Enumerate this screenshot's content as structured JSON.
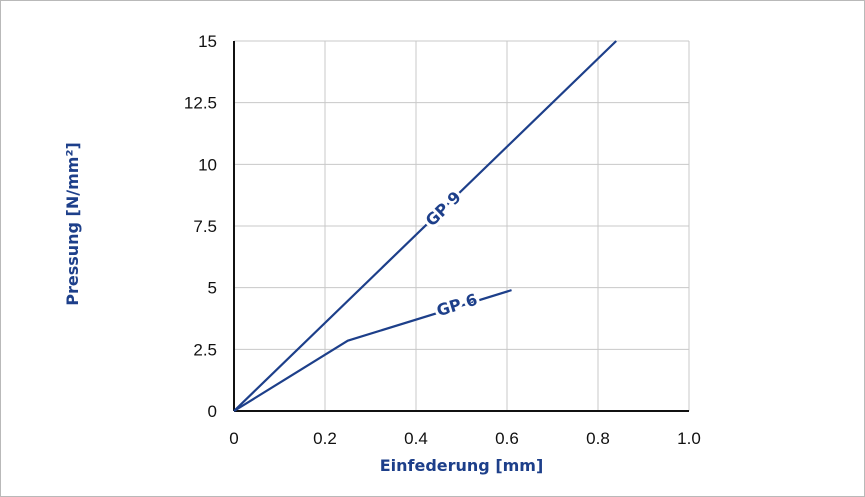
{
  "chart_data": {
    "type": "line",
    "title": "",
    "xlabel": "Einfederung [mm]",
    "ylabel": "Pressung [N/mm²]",
    "xlim": [
      0,
      1.0
    ],
    "ylim": [
      0,
      15
    ],
    "x_ticks": [
      "0",
      "0.2",
      "0.4",
      "0.6",
      "0.8",
      "1.0"
    ],
    "y_ticks": [
      "0",
      "2.5",
      "5",
      "7.5",
      "10",
      "12.5",
      "15"
    ],
    "x_tick_values": [
      0,
      0.2,
      0.4,
      0.6,
      0.8,
      1.0
    ],
    "y_tick_values": [
      0,
      2.5,
      5,
      7.5,
      10,
      12.5,
      15
    ],
    "grid": true,
    "legend": "none",
    "series": [
      {
        "name": "GP 9",
        "color": "#1d3f8a",
        "points": [
          [
            0,
            0
          ],
          [
            0.84,
            15
          ]
        ],
        "label_at": [
          0.46,
          8.2
        ]
      },
      {
        "name": "GP 6",
        "color": "#1d3f8a",
        "points": [
          [
            0,
            0
          ],
          [
            0.25,
            2.85
          ],
          [
            0.61,
            4.9
          ]
        ],
        "label_at": [
          0.49,
          4.3
        ]
      }
    ]
  }
}
